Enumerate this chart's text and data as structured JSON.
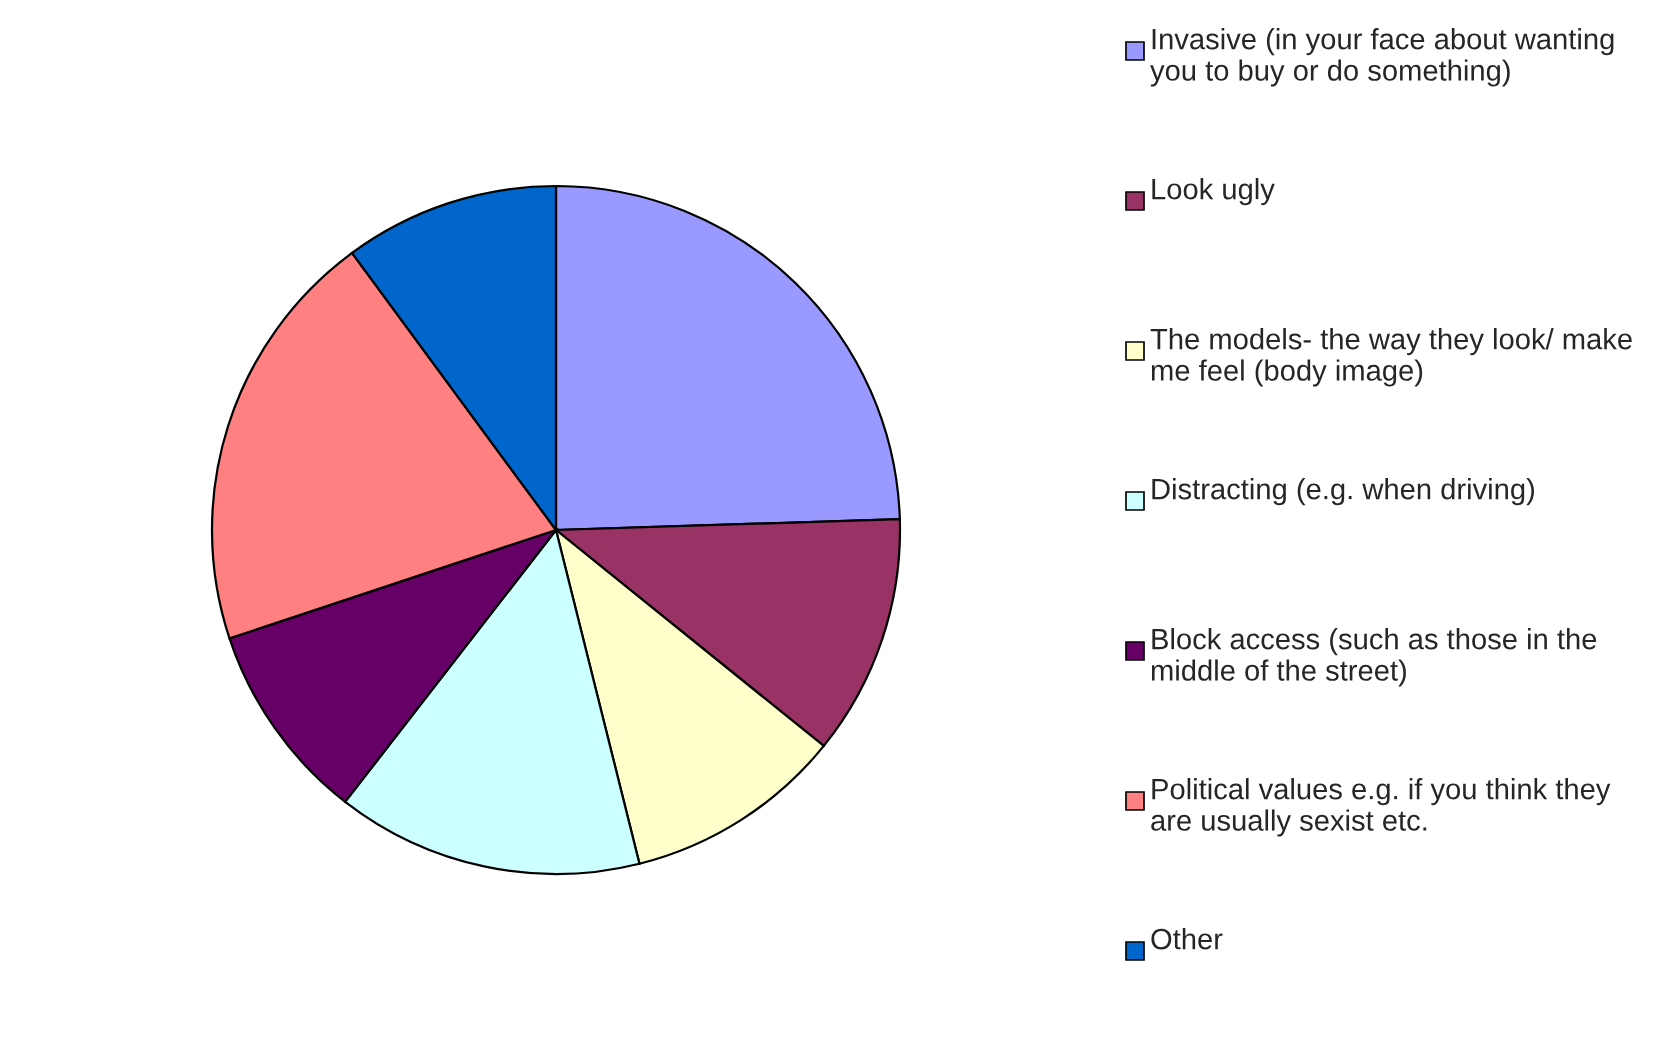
{
  "chart_data": {
    "type": "pie",
    "legend": "right",
    "categories": [
      "Invasive (in your face about wanting you to buy or do something)",
      "Look ugly",
      "The models- the way they look/ make me feel (body image)",
      "Distracting (e.g. when driving)",
      "Block access (such as those in the middle of the street)",
      "Political values e.g. if you think they are usually sexist etc.",
      "Other"
    ],
    "values": [
      24.5,
      11.3,
      10.3,
      14.4,
      9.4,
      20.0,
      10.1
    ],
    "colors": [
      "#9999ff",
      "#993366",
      "#ffffcc",
      "#ccffff",
      "#660066",
      "#ff8080",
      "#0066cc"
    ]
  }
}
